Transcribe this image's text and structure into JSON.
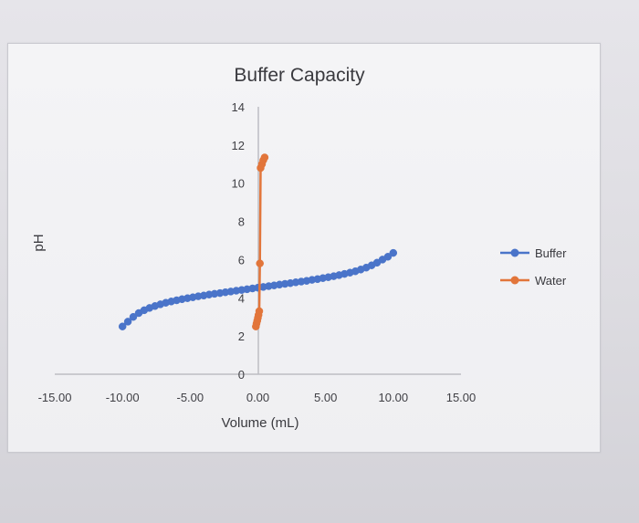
{
  "chart_data": {
    "type": "scatter",
    "title": "Buffer Capacity",
    "xlabel": "Volume (mL)",
    "ylabel": "pH",
    "xlim": [
      -15,
      15
    ],
    "ylim": [
      0,
      14
    ],
    "x_ticks": [
      "-15.00",
      "-10.00",
      "-5.00",
      "0.00",
      "5.00",
      "10.00",
      "15.00"
    ],
    "y_ticks": [
      "0",
      "2",
      "4",
      "6",
      "8",
      "10",
      "12",
      "14"
    ],
    "grid": false,
    "legend_position": "right",
    "series": [
      {
        "name": "Buffer",
        "color": "#4a74c9",
        "marker": "circle",
        "line": true,
        "points": [
          [
            -10.0,
            2.5
          ],
          [
            -9.6,
            2.75
          ],
          [
            -9.2,
            3.0
          ],
          [
            -8.8,
            3.2
          ],
          [
            -8.4,
            3.35
          ],
          [
            -8.0,
            3.47
          ],
          [
            -7.6,
            3.57
          ],
          [
            -7.2,
            3.66
          ],
          [
            -6.8,
            3.74
          ],
          [
            -6.4,
            3.81
          ],
          [
            -6.0,
            3.87
          ],
          [
            -5.6,
            3.93
          ],
          [
            -5.2,
            3.98
          ],
          [
            -4.8,
            4.03
          ],
          [
            -4.4,
            4.08
          ],
          [
            -4.0,
            4.12
          ],
          [
            -3.6,
            4.17
          ],
          [
            -3.2,
            4.21
          ],
          [
            -2.8,
            4.25
          ],
          [
            -2.4,
            4.29
          ],
          [
            -2.0,
            4.33
          ],
          [
            -1.6,
            4.37
          ],
          [
            -1.2,
            4.41
          ],
          [
            -0.8,
            4.45
          ],
          [
            -0.4,
            4.49
          ],
          [
            0.0,
            4.53
          ],
          [
            0.4,
            4.57
          ],
          [
            0.8,
            4.61
          ],
          [
            1.2,
            4.65
          ],
          [
            1.6,
            4.69
          ],
          [
            2.0,
            4.73
          ],
          [
            2.4,
            4.77
          ],
          [
            2.8,
            4.81
          ],
          [
            3.2,
            4.85
          ],
          [
            3.6,
            4.89
          ],
          [
            4.0,
            4.94
          ],
          [
            4.4,
            4.98
          ],
          [
            4.8,
            5.03
          ],
          [
            5.2,
            5.08
          ],
          [
            5.6,
            5.13
          ],
          [
            6.0,
            5.19
          ],
          [
            6.4,
            5.25
          ],
          [
            6.8,
            5.32
          ],
          [
            7.2,
            5.39
          ],
          [
            7.6,
            5.48
          ],
          [
            8.0,
            5.58
          ],
          [
            8.4,
            5.7
          ],
          [
            8.8,
            5.84
          ],
          [
            9.2,
            6.0
          ],
          [
            9.6,
            6.15
          ],
          [
            10.0,
            6.35
          ]
        ]
      },
      {
        "name": "Water",
        "color": "#e2753a",
        "marker": "circle",
        "line": true,
        "points": [
          [
            -0.15,
            2.5
          ],
          [
            -0.1,
            2.65
          ],
          [
            -0.05,
            2.8
          ],
          [
            0.0,
            2.95
          ],
          [
            0.05,
            3.1
          ],
          [
            0.1,
            3.3
          ],
          [
            0.15,
            5.8
          ],
          [
            0.2,
            10.8
          ],
          [
            0.3,
            11.0
          ],
          [
            0.4,
            11.2
          ],
          [
            0.5,
            11.35
          ]
        ]
      }
    ]
  }
}
